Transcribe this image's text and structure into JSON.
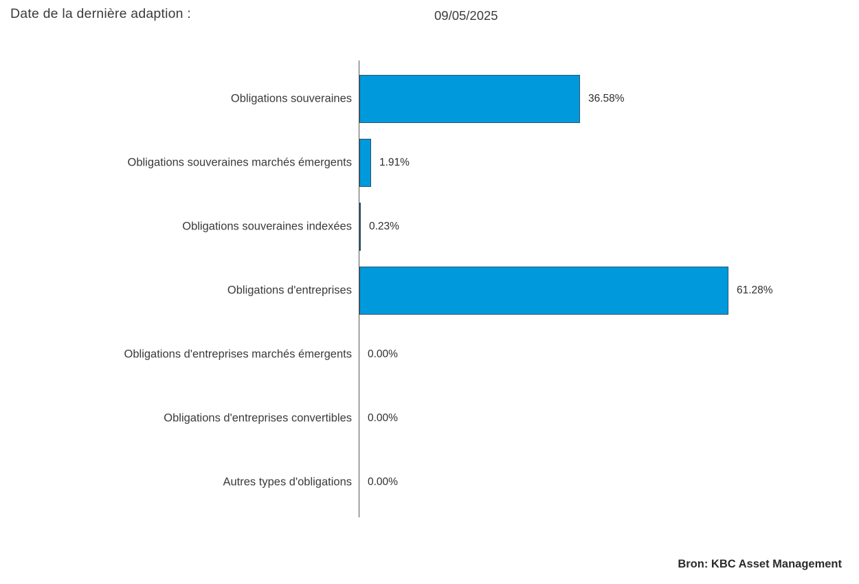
{
  "header": {
    "label": "Date de la dernière adaption :",
    "date": "09/05/2025"
  },
  "footer": {
    "source": "Bron: KBC Asset Management"
  },
  "colors": {
    "bar_fill": "#0099DC",
    "bar_border": "#27536B",
    "axis": "#555555",
    "text": "#3a3a3a"
  },
  "chart_data": {
    "type": "bar",
    "orientation": "horizontal",
    "categories": [
      "Obligations souveraines",
      "Obligations souveraines marchés émergents",
      "Obligations souveraines indexées",
      "Obligations d'entreprises",
      "Obligations d'entreprises marchés émergents",
      "Obligations d'entreprises convertibles",
      "Autres types d'obligations"
    ],
    "values": [
      36.58,
      1.91,
      0.23,
      61.28,
      0.0,
      0.0,
      0.0
    ],
    "value_labels": [
      "36.58%",
      "1.91%",
      "0.23%",
      "61.28%",
      "0.00%",
      "0.00%",
      "0.00%"
    ],
    "title": "",
    "xlabel": "",
    "ylabel": "",
    "xlim": [
      0,
      83
    ],
    "grid": false,
    "legend": false
  }
}
